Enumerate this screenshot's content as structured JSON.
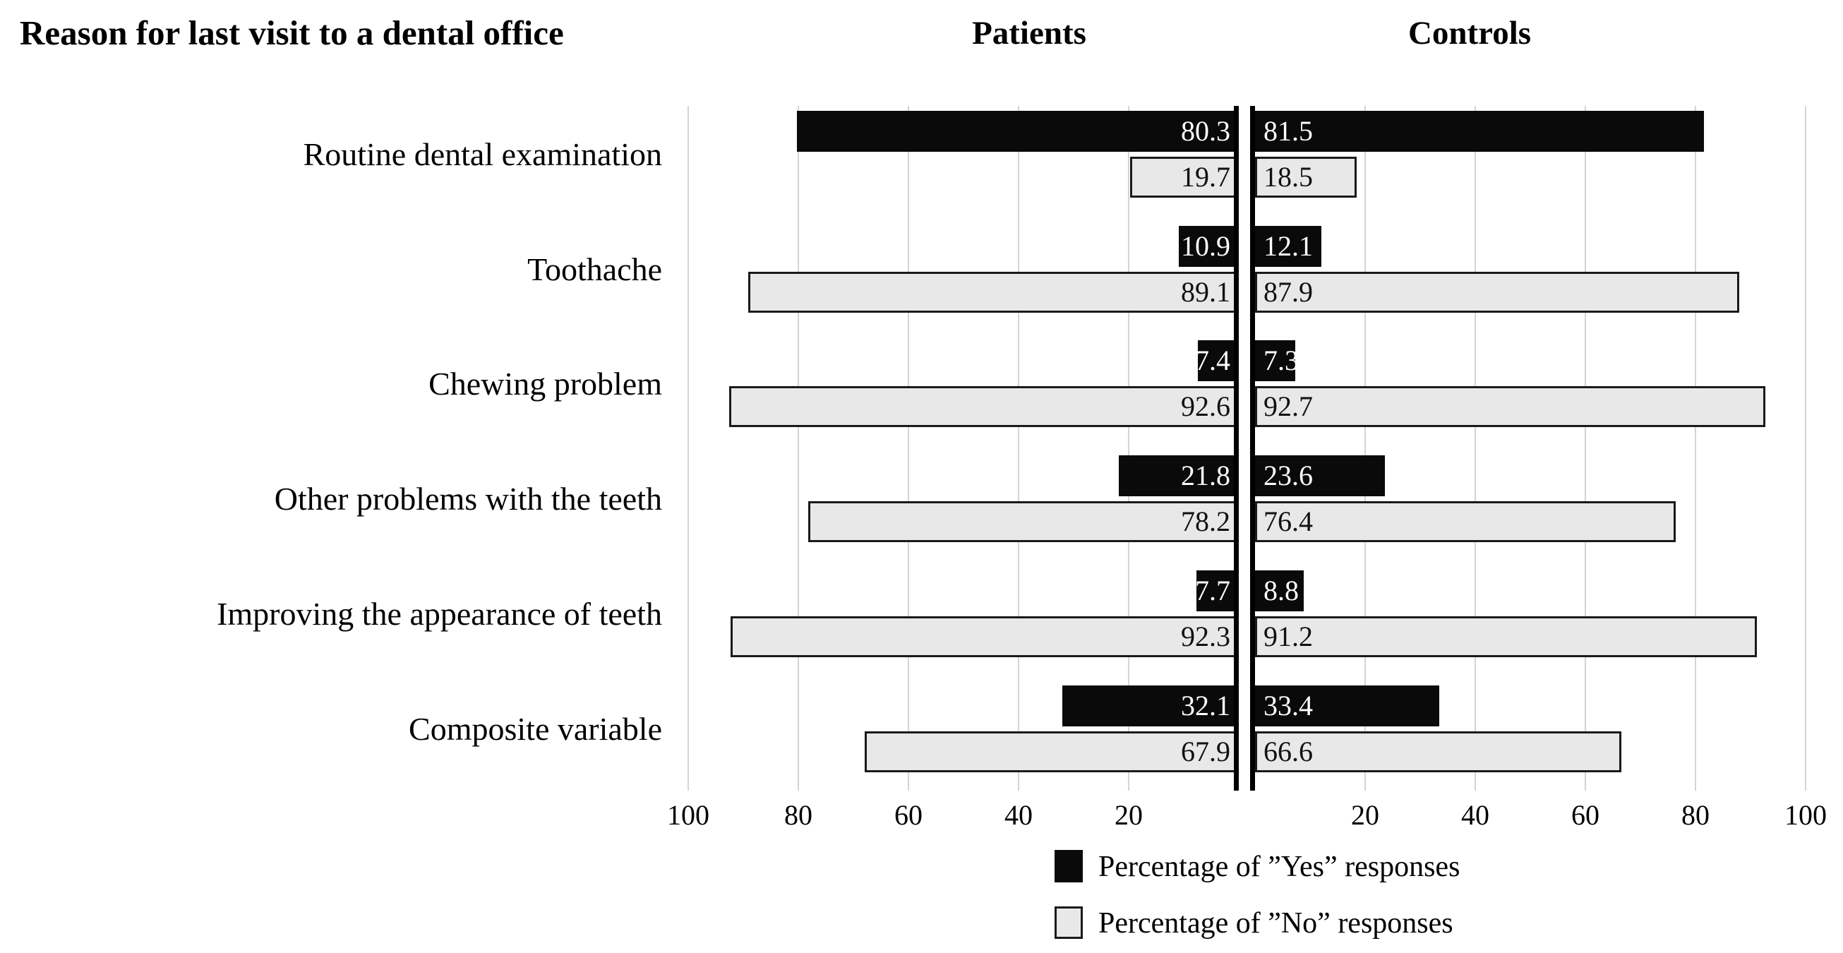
{
  "chart_data": {
    "type": "bar",
    "variant": "diverging-horizontal-butterfly",
    "title": "Reason for last visit to a dental office",
    "panels": {
      "left": "Patients",
      "right": "Controls"
    },
    "categories": [
      "Routine dental examination",
      "Toothache",
      "Chewing problem",
      "Other problems with the teeth",
      "Improving the appearance of teeth",
      "Composite variable"
    ],
    "series": [
      {
        "name": "Patients - Yes",
        "panel": "left",
        "kind": "yes",
        "values": [
          80.3,
          10.9,
          7.4,
          21.8,
          7.7,
          32.1
        ]
      },
      {
        "name": "Patients - No",
        "panel": "left",
        "kind": "no",
        "values": [
          19.7,
          89.1,
          92.6,
          78.2,
          92.3,
          67.9
        ]
      },
      {
        "name": "Controls - Yes",
        "panel": "right",
        "kind": "yes",
        "values": [
          81.5,
          12.1,
          7.3,
          23.6,
          8.8,
          33.4
        ]
      },
      {
        "name": "Controls - No",
        "panel": "right",
        "kind": "no",
        "values": [
          18.5,
          87.9,
          92.7,
          76.4,
          91.2,
          66.6
        ]
      }
    ],
    "axis": {
      "min": 0,
      "max": 100,
      "ticks": [
        20,
        40,
        60,
        80,
        100
      ],
      "tick_labels_left": [
        "100",
        "80",
        "60",
        "40",
        "20"
      ],
      "tick_labels_right": [
        "20",
        "40",
        "60",
        "80",
        "100"
      ],
      "gridlines": true
    },
    "legend_position": "bottom-center",
    "legend": [
      {
        "kind": "yes",
        "label": "Percentage of ”Yes” responses"
      },
      {
        "kind": "no",
        "label": "Percentage of ”No” responses"
      }
    ],
    "colors": {
      "yes": "#0a0a0a",
      "no": "#e8e8e8",
      "no_border": "#1a1a1a",
      "gridline": "#d4d4d4",
      "axis": "#000000",
      "value_on_yes": "#ffffff",
      "value_on_no": "#111111"
    }
  }
}
